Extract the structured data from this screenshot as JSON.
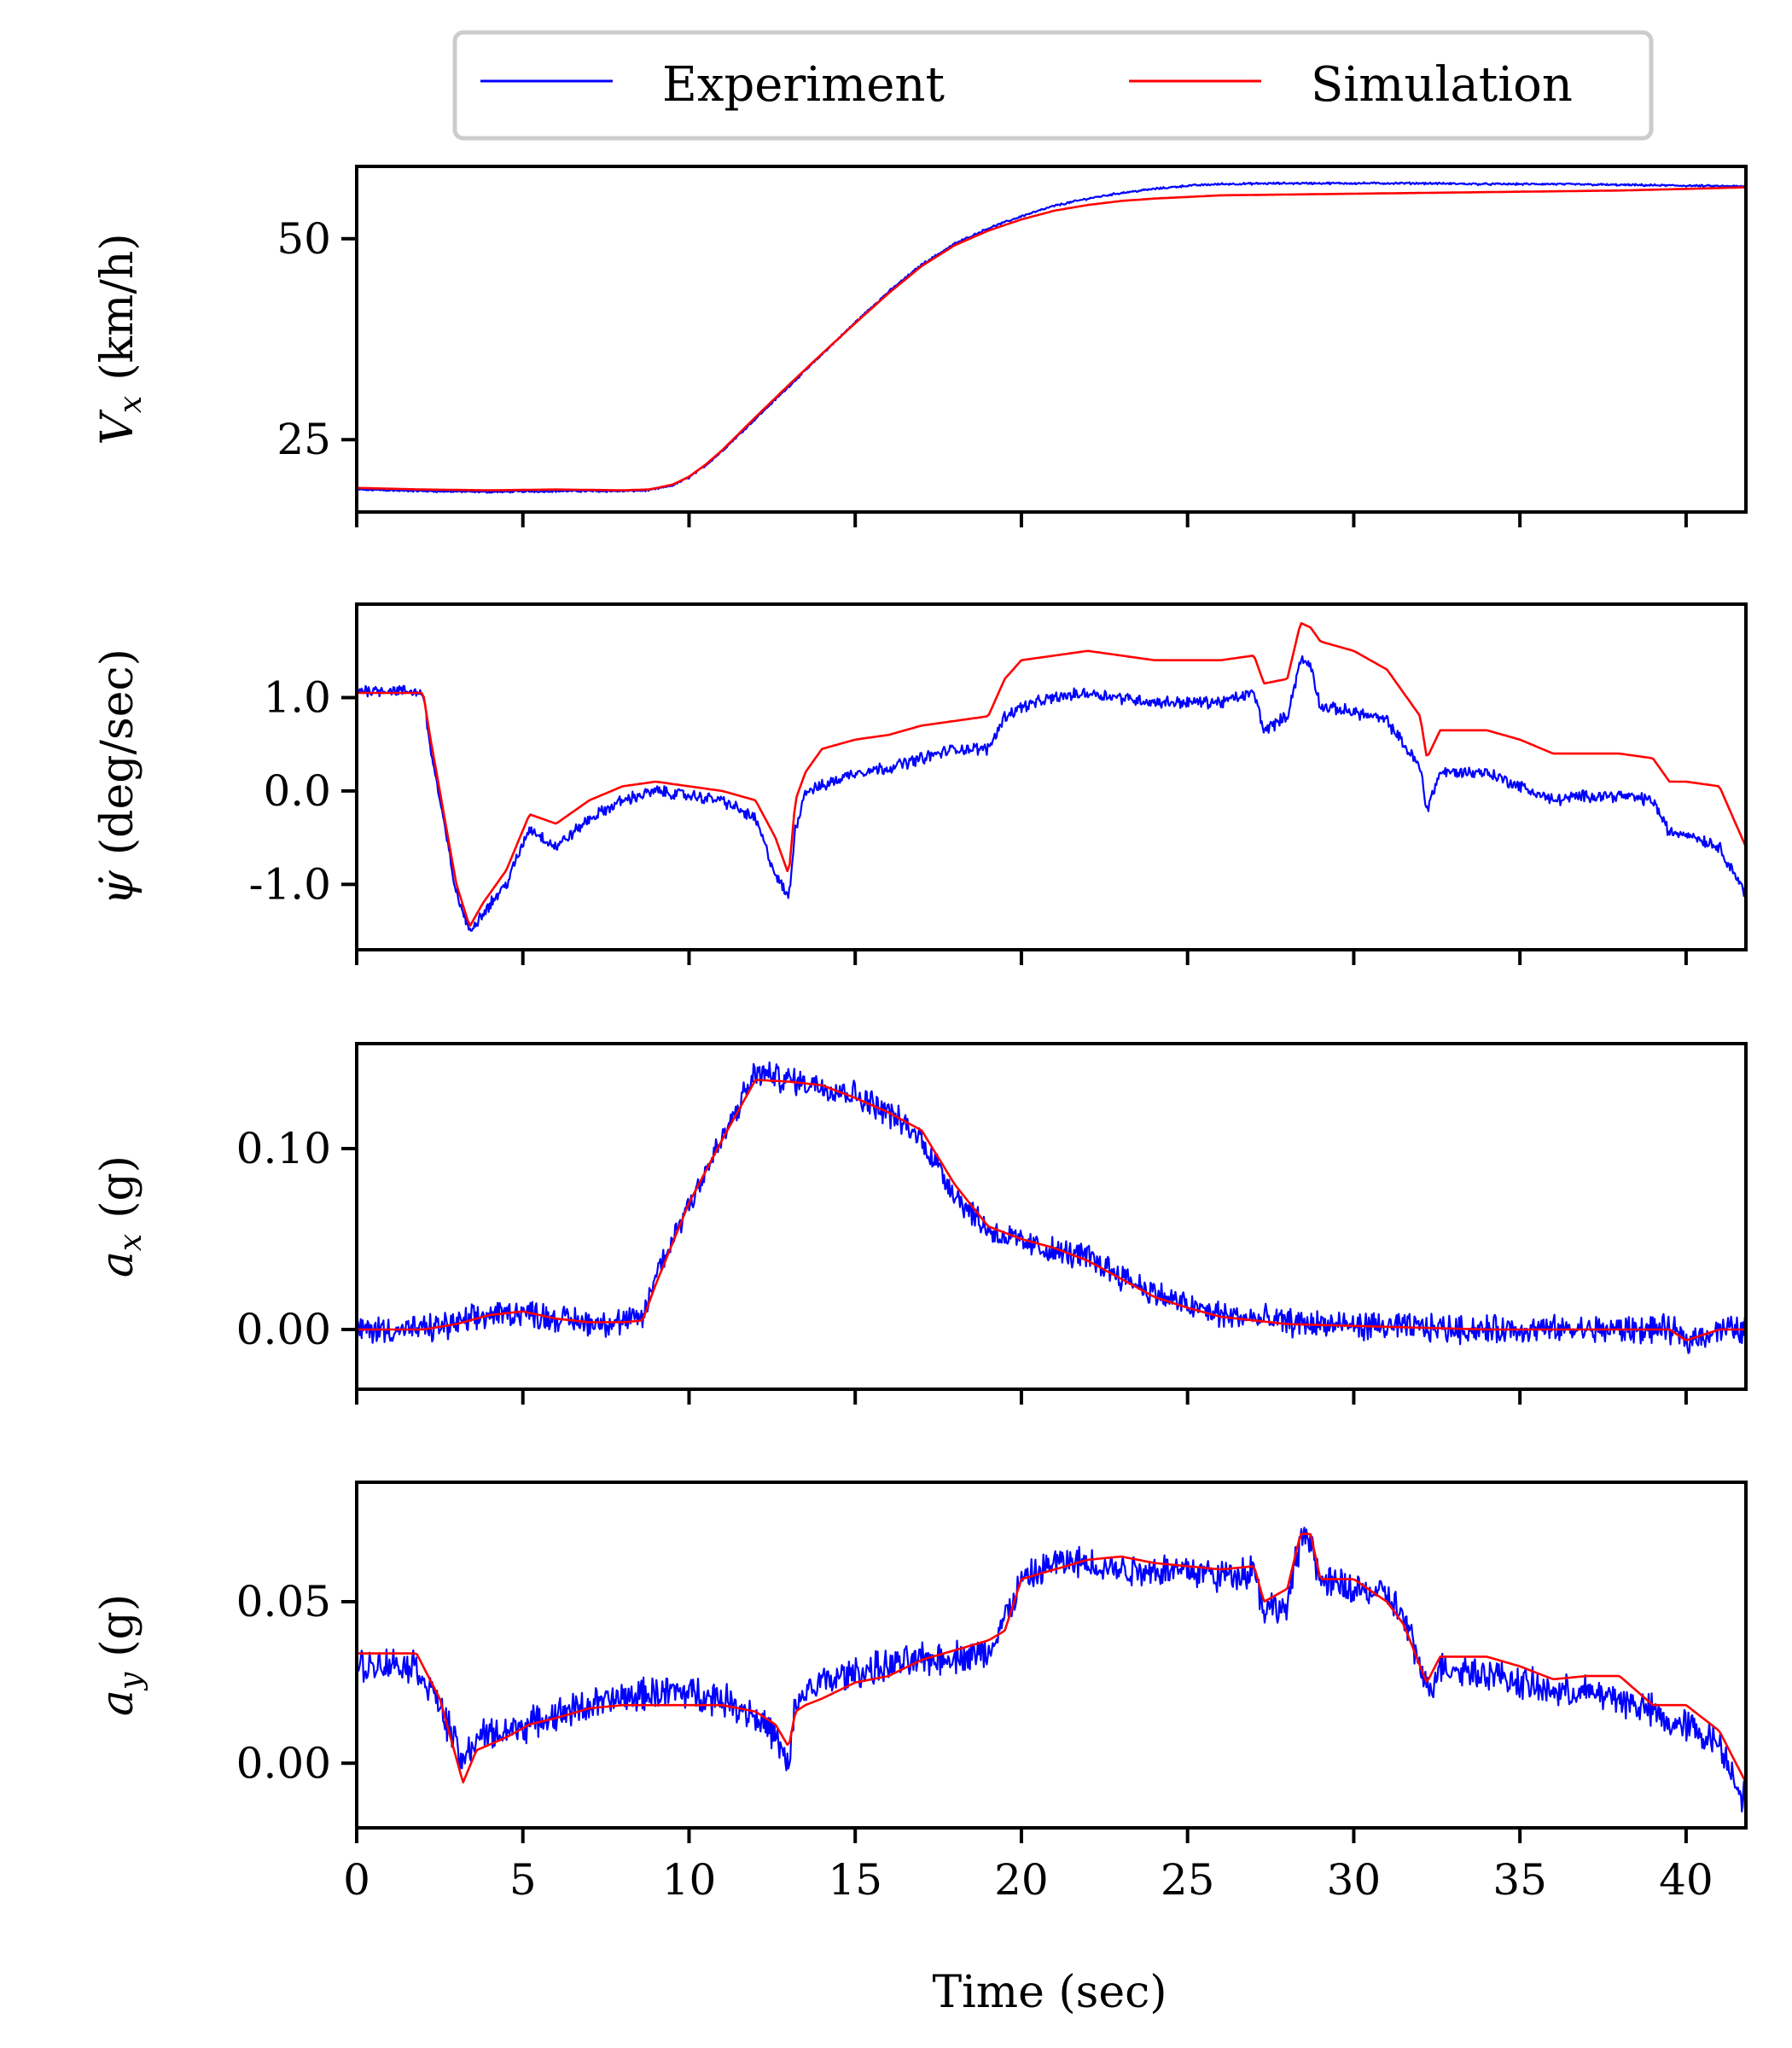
{
  "legend": {
    "entries": [
      {
        "label": "Experiment",
        "color": "#0000ff"
      },
      {
        "label": "Simulation",
        "color": "#ff0000"
      }
    ]
  },
  "chart_data": {
    "type": "line",
    "xlabel": "Time (sec)",
    "xlim": [
      0,
      41.8
    ],
    "xticks": [
      0,
      5,
      10,
      15,
      20,
      25,
      30,
      35,
      40
    ],
    "xtick_labels": [
      "0",
      "5",
      "10",
      "15",
      "20",
      "25",
      "30",
      "35",
      "40"
    ],
    "grid": false,
    "legend_position": "top-center",
    "series_colors": {
      "Experiment": "#0000ff",
      "Simulation": "#ff0000"
    },
    "panels": [
      {
        "key": "vx",
        "ylabel_main": "V",
        "ylabel_sub": "x",
        "ylabel_unit": "(km/h)",
        "ylim": [
          16,
          59
        ],
        "yticks": [
          25,
          50
        ],
        "ytick_labels": [
          "25",
          "50"
        ],
        "noise": 0.1,
        "series": [
          {
            "name": "Experiment",
            "x": [
              0,
              2,
              4,
              6,
              8,
              8.8,
              9.5,
              10,
              10.5,
              11,
              12,
              13,
              14,
              15,
              16,
              17,
              18,
              19,
              20,
              21,
              22,
              23,
              24,
              25,
              26,
              28,
              30,
              32,
              34,
              36,
              38,
              40,
              41.8
            ],
            "y": [
              18.8,
              18.6,
              18.5,
              18.6,
              18.6,
              18.7,
              19.3,
              20.3,
              21.8,
              23.6,
              27.6,
              31.6,
              35.6,
              39.6,
              43.4,
              46.8,
              49.4,
              51.3,
              52.8,
              54.1,
              55.0,
              55.7,
              56.2,
              56.6,
              56.8,
              56.9,
              56.9,
              56.9,
              56.8,
              56.8,
              56.7,
              56.6,
              56.5
            ]
          },
          {
            "name": "Simulation",
            "x": [
              0,
              2,
              4,
              6,
              8,
              8.8,
              9.5,
              10,
              10.5,
              11,
              12,
              13,
              14,
              15,
              16,
              17,
              18,
              19,
              20,
              21,
              22,
              23,
              24,
              25,
              26,
              28,
              30,
              32,
              34,
              36,
              38,
              40,
              41.8
            ],
            "y": [
              19.0,
              18.8,
              18.7,
              18.8,
              18.7,
              18.8,
              19.4,
              20.4,
              21.9,
              23.7,
              27.8,
              31.8,
              35.7,
              39.5,
              43.2,
              46.6,
              49.2,
              51.0,
              52.4,
              53.5,
              54.2,
              54.7,
              55.0,
              55.2,
              55.4,
              55.5,
              55.6,
              55.7,
              55.8,
              55.9,
              56.0,
              56.2,
              56.4
            ]
          }
        ]
      },
      {
        "key": "psidot",
        "ylabel_main": "ψ̇",
        "ylabel_sub": "",
        "ylabel_unit": "(deg/sec)",
        "ylim": [
          -1.7,
          2.0
        ],
        "yticks": [
          -1.0,
          0.0,
          1.0
        ],
        "ytick_labels": [
          "-1.0",
          "0.0",
          "1.0"
        ],
        "noise": 0.05,
        "series": [
          {
            "name": "Experiment",
            "x": [
              0,
              1,
              2,
              2.2,
              2.6,
              3.0,
              3.4,
              3.8,
              4.5,
              5.2,
              6,
              7,
              8,
              9,
              10,
              11,
              12,
              12.6,
              13,
              13.2,
              13.5,
              14,
              15,
              16,
              17,
              18,
              19,
              19.5,
              20,
              21,
              22,
              23,
              24,
              25,
              26,
              27,
              27.3,
              28,
              28.4,
              28.7,
              29,
              30,
              31,
              31.5,
              32,
              32.2,
              32.6,
              34,
              35,
              36,
              37,
              38,
              39,
              39.5,
              40,
              41,
              41.8
            ],
            "y": [
              1.08,
              1.08,
              1.05,
              0.5,
              -0.3,
              -1.1,
              -1.5,
              -1.3,
              -1.0,
              -0.4,
              -0.6,
              -0.3,
              -0.1,
              0.0,
              -0.05,
              -0.1,
              -0.3,
              -0.9,
              -1.15,
              -0.4,
              0.0,
              0.05,
              0.2,
              0.25,
              0.35,
              0.45,
              0.45,
              0.8,
              0.9,
              1.0,
              1.05,
              1.0,
              0.95,
              0.95,
              0.95,
              1.05,
              0.65,
              0.8,
              1.4,
              1.35,
              0.9,
              0.85,
              0.75,
              0.5,
              0.25,
              -0.2,
              0.2,
              0.2,
              0.05,
              -0.1,
              -0.05,
              -0.05,
              -0.1,
              -0.45,
              -0.45,
              -0.6,
              -1.1
            ]
          },
          {
            "name": "Simulation",
            "x": [
              0,
              1,
              2,
              2.2,
              2.6,
              3.0,
              3.4,
              3.8,
              4.5,
              5.2,
              6,
              7,
              8,
              9,
              10,
              11,
              12,
              12.6,
              13,
              13.2,
              13.5,
              14,
              15,
              16,
              17,
              18,
              19,
              19.5,
              20,
              21,
              22,
              23,
              24,
              25,
              26,
              27,
              27.3,
              28,
              28.4,
              28.7,
              29,
              30,
              31,
              31.5,
              32,
              32.2,
              32.6,
              34,
              35,
              36,
              37,
              38,
              39,
              39.5,
              40,
              41,
              41.8
            ],
            "y": [
              1.05,
              1.05,
              1.05,
              0.6,
              -0.2,
              -1.0,
              -1.45,
              -1.2,
              -0.85,
              -0.25,
              -0.35,
              -0.1,
              0.05,
              0.1,
              0.05,
              0.0,
              -0.1,
              -0.5,
              -0.9,
              -0.1,
              0.2,
              0.45,
              0.55,
              0.6,
              0.7,
              0.75,
              0.8,
              1.2,
              1.4,
              1.45,
              1.5,
              1.45,
              1.4,
              1.4,
              1.4,
              1.45,
              1.15,
              1.2,
              1.8,
              1.75,
              1.6,
              1.5,
              1.3,
              1.05,
              0.8,
              0.35,
              0.65,
              0.65,
              0.55,
              0.4,
              0.4,
              0.4,
              0.35,
              0.1,
              0.1,
              0.05,
              -0.6
            ]
          }
        ]
      },
      {
        "key": "ax",
        "ylabel_main": "a",
        "ylabel_sub": "x",
        "ylabel_unit": "(g)",
        "ylim": [
          -0.033,
          0.158
        ],
        "yticks": [
          0.0,
          0.1
        ],
        "ytick_labels": [
          "0.00",
          "0.10"
        ],
        "noise": 0.006,
        "series": [
          {
            "name": "Experiment",
            "x": [
              0,
              2,
              3,
              4,
              5,
              6,
              7,
              8,
              8.6,
              9,
              10,
              11,
              12,
              13,
              14,
              15,
              16,
              17,
              18,
              19,
              20,
              21,
              22,
              23,
              24,
              25,
              26,
              28,
              30,
              32,
              34,
              36,
              38,
              39.5,
              40,
              41,
              41.8
            ],
            "y": [
              0.0,
              0.0,
              0.003,
              0.008,
              0.01,
              0.006,
              0.004,
              0.004,
              0.006,
              0.03,
              0.07,
              0.105,
              0.142,
              0.138,
              0.135,
              0.13,
              0.12,
              0.105,
              0.075,
              0.055,
              0.048,
              0.043,
              0.04,
              0.03,
              0.02,
              0.013,
              0.008,
              0.004,
              0.002,
              0.001,
              0.0,
              0.0,
              0.0,
              0.0,
              -0.006,
              0.0,
              0.0
            ]
          },
          {
            "name": "Simulation",
            "x": [
              0,
              2,
              3,
              4,
              5,
              6,
              7,
              8,
              8.6,
              9,
              10,
              11,
              12,
              13,
              14,
              15,
              16,
              17,
              18,
              19,
              20,
              21,
              22,
              23,
              24,
              25,
              26,
              28,
              30,
              32,
              34,
              36,
              38,
              39.5,
              40,
              41,
              41.8
            ],
            "y": [
              0.0,
              0.0,
              0.003,
              0.008,
              0.01,
              0.006,
              0.004,
              0.004,
              0.005,
              0.025,
              0.07,
              0.105,
              0.138,
              0.137,
              0.135,
              0.128,
              0.12,
              0.11,
              0.08,
              0.057,
              0.05,
              0.045,
              0.038,
              0.028,
              0.018,
              0.012,
              0.007,
              0.003,
              0.002,
              0.001,
              0.0,
              0.0,
              0.0,
              0.0,
              -0.006,
              0.0,
              0.0
            ]
          }
        ]
      },
      {
        "key": "ay",
        "ylabel_main": "a",
        "ylabel_sub": "y",
        "ylabel_unit": "(g)",
        "ylim": [
          -0.02,
          0.087
        ],
        "yticks": [
          0.0,
          0.05
        ],
        "ytick_labels": [
          "0.00",
          "0.05"
        ],
        "noise": 0.004,
        "series": [
          {
            "name": "Experiment",
            "x": [
              0,
              1,
              1.8,
              2.5,
              3.2,
              3.6,
              4.5,
              5.2,
              6,
              7,
              8,
              9,
              10,
              11,
              12,
              12.6,
              13,
              13.2,
              13.5,
              14,
              15,
              16,
              17,
              18,
              19,
              19.5,
              20,
              21,
              22,
              23,
              24,
              25,
              26,
              27,
              27.3,
              28,
              28.4,
              28.7,
              29,
              30,
              31,
              31.5,
              32,
              32.2,
              32.6,
              34,
              35,
              36,
              37,
              38,
              39,
              39.5,
              40,
              41,
              41.8
            ],
            "y": [
              0.03,
              0.031,
              0.03,
              0.018,
              0.0,
              0.008,
              0.01,
              0.012,
              0.015,
              0.018,
              0.02,
              0.022,
              0.022,
              0.02,
              0.015,
              0.008,
              -0.002,
              0.018,
              0.022,
              0.025,
              0.028,
              0.03,
              0.032,
              0.033,
              0.034,
              0.045,
              0.056,
              0.062,
              0.062,
              0.06,
              0.06,
              0.06,
              0.058,
              0.06,
              0.048,
              0.048,
              0.07,
              0.07,
              0.056,
              0.054,
              0.052,
              0.045,
              0.03,
              0.022,
              0.03,
              0.028,
              0.025,
              0.022,
              0.022,
              0.02,
              0.016,
              0.012,
              0.012,
              0.006,
              -0.012
            ]
          },
          {
            "name": "Simulation",
            "x": [
              0,
              1,
              1.8,
              2.5,
              3.2,
              3.6,
              4.5,
              5.2,
              6,
              7,
              8,
              9,
              10,
              11,
              12,
              12.6,
              13,
              13.2,
              13.5,
              14,
              15,
              16,
              17,
              18,
              19,
              19.5,
              20,
              21,
              22,
              23,
              24,
              25,
              26,
              27,
              27.3,
              28,
              28.4,
              28.7,
              29,
              30,
              31,
              31.5,
              32,
              32.2,
              32.6,
              34,
              35,
              36,
              37,
              38,
              39,
              39.5,
              40,
              41,
              41.8
            ],
            "y": [
              0.034,
              0.034,
              0.034,
              0.02,
              -0.006,
              0.004,
              0.008,
              0.012,
              0.014,
              0.017,
              0.018,
              0.018,
              0.018,
              0.018,
              0.016,
              0.012,
              0.005,
              0.016,
              0.018,
              0.02,
              0.025,
              0.027,
              0.032,
              0.035,
              0.038,
              0.041,
              0.057,
              0.06,
              0.063,
              0.064,
              0.062,
              0.061,
              0.06,
              0.061,
              0.05,
              0.054,
              0.071,
              0.071,
              0.057,
              0.057,
              0.05,
              0.043,
              0.03,
              0.025,
              0.033,
              0.033,
              0.03,
              0.026,
              0.027,
              0.027,
              0.018,
              0.018,
              0.018,
              0.01,
              -0.006
            ]
          }
        ]
      }
    ]
  }
}
